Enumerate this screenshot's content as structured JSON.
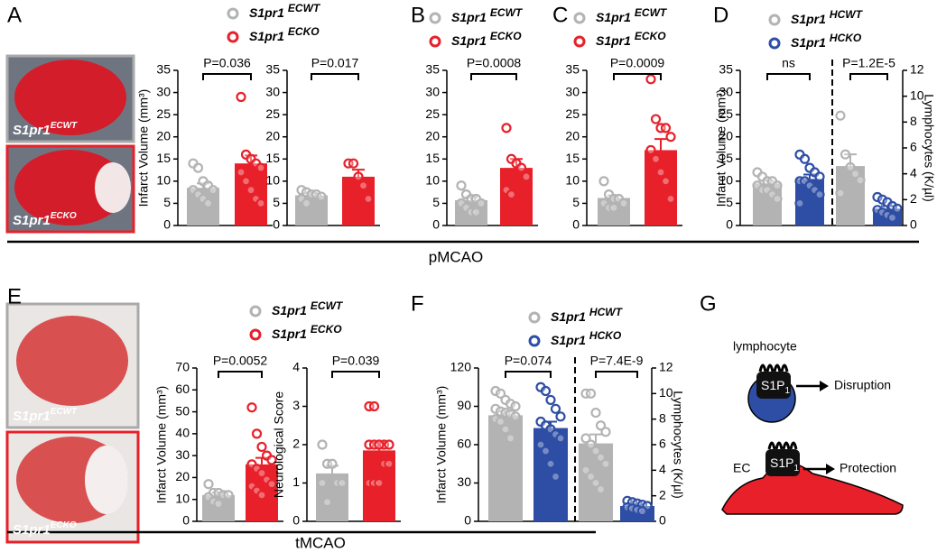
{
  "panels": [
    {
      "label": "A",
      "legend": [
        {
          "name": "S1pr1",
          "sup": "ECWT"
        },
        {
          "name": "S1pr1",
          "sup": "ECKO"
        }
      ],
      "images": [
        {
          "name": "S1pr1",
          "sup": "ECWT"
        },
        {
          "name": "S1pr1",
          "sup": "ECKO"
        }
      ]
    },
    {
      "label": "B",
      "legend": [
        {
          "name": "S1pr1",
          "sup": "ECWT"
        },
        {
          "name": "S1pr1",
          "sup": "ECKO"
        }
      ]
    },
    {
      "label": "C",
      "legend": [
        {
          "name": "S1pr1",
          "sup": "ECWT"
        },
        {
          "name": "S1pr1",
          "sup": "ECKO"
        }
      ]
    },
    {
      "label": "D",
      "legend": [
        {
          "name": "S1pr1",
          "sup": "HCWT"
        },
        {
          "name": "S1pr1",
          "sup": "HCKO"
        }
      ]
    },
    {
      "label": "E",
      "legend": [
        {
          "name": "S1pr1",
          "sup": "ECWT"
        },
        {
          "name": "S1pr1",
          "sup": "ECKO"
        }
      ],
      "images": [
        {
          "name": "S1pr1",
          "sup": "ECWT"
        },
        {
          "name": "S1pr1",
          "sup": "ECKO"
        }
      ]
    },
    {
      "label": "F",
      "legend": [
        {
          "name": "S1pr1",
          "sup": "HCWT"
        },
        {
          "name": "S1pr1",
          "sup": "HCKO"
        }
      ]
    },
    {
      "label": "G",
      "texts": {
        "lymphocyte": "lymphocyte",
        "receptor": "S1P",
        "receptor_sub": "1",
        "disruption": "Disruption",
        "ec": "EC",
        "protection": "Protection"
      }
    }
  ],
  "sections": [
    "pMCAO",
    "tMCAO"
  ],
  "chart_data": [
    {
      "type": "bar",
      "ylabel": "Infarct Volume (mm³)",
      "ylim": [
        0,
        35
      ],
      "yticks": [
        0,
        5,
        10,
        15,
        20,
        25,
        30,
        35
      ],
      "brackets": [
        "P=0.036"
      ],
      "series": [
        {
          "color": "#b3b3b3",
          "values": [
            8.5
          ],
          "errors": [
            1
          ],
          "points": [
            14,
            13,
            10,
            9,
            8,
            8,
            7,
            6,
            5
          ]
        },
        {
          "color": "#e8202a",
          "values": [
            14
          ],
          "errors": [
            1.8
          ],
          "points": [
            29,
            16,
            15,
            14,
            13,
            12,
            10,
            8,
            6,
            5
          ]
        }
      ]
    },
    {
      "type": "bar",
      "ylim": [
        0,
        35
      ],
      "yticks": [
        0,
        5,
        10,
        15,
        20,
        25,
        30,
        35
      ],
      "brackets": [
        "P=0.017"
      ],
      "series": [
        {
          "color": "#b3b3b3",
          "values": [
            6.8
          ],
          "errors": [
            0.5
          ],
          "points": [
            8,
            7.5,
            7,
            7,
            6.5,
            6,
            5
          ]
        },
        {
          "color": "#e8202a",
          "values": [
            11
          ],
          "errors": [
            1.6
          ],
          "points": [
            14,
            14,
            11,
            9,
            6
          ]
        }
      ]
    },
    {
      "type": "bar",
      "ylim": [
        0,
        35
      ],
      "yticks": [
        0,
        5,
        10,
        15,
        20,
        25,
        30,
        35
      ],
      "brackets": [
        "P=0.0008"
      ],
      "series": [
        {
          "color": "#b3b3b3",
          "values": [
            5.7
          ],
          "errors": [
            0.7
          ],
          "points": [
            9,
            7,
            6,
            6,
            5,
            5,
            4,
            3,
            3
          ]
        },
        {
          "color": "#e8202a",
          "values": [
            13
          ],
          "errors": [
            2
          ],
          "points": [
            22,
            15,
            14,
            13,
            11,
            8,
            7
          ]
        }
      ]
    },
    {
      "type": "bar",
      "ylim": [
        0,
        35
      ],
      "yticks": [
        0,
        5,
        10,
        15,
        20,
        25,
        30,
        35
      ],
      "brackets": [
        "P=0.0009"
      ],
      "series": [
        {
          "color": "#b3b3b3",
          "values": [
            6.2
          ],
          "errors": [
            0.6
          ],
          "points": [
            10,
            7,
            6,
            6,
            5,
            5,
            4,
            4
          ]
        },
        {
          "color": "#e8202a",
          "values": [
            17
          ],
          "errors": [
            2.5
          ],
          "points": [
            33,
            24,
            22,
            22,
            20,
            17,
            15,
            12,
            10,
            6
          ]
        }
      ]
    },
    {
      "type": "bar",
      "ylabel": "Infarct Volume  (mm³)",
      "ylim": [
        0,
        35
      ],
      "yticks": [
        0,
        5,
        10,
        15,
        20,
        25,
        30,
        35
      ],
      "y2label": "Lymphocytes (K/µl)",
      "y2lim": [
        0,
        12
      ],
      "y2ticks": [
        0,
        2,
        4,
        6,
        8,
        10,
        12
      ],
      "brackets": [
        "ns",
        "P=1.2E-5"
      ],
      "series": [
        {
          "color": "#b3b3b3",
          "values": [
            9.5
          ],
          "errors": [
            0.6
          ],
          "points": [
            12,
            11,
            10,
            10,
            9,
            9,
            8,
            8,
            7,
            6
          ]
        },
        {
          "color": "#2e4ea5",
          "values": [
            10.5
          ],
          "errors": [
            1
          ],
          "points": [
            16,
            15,
            13,
            12,
            11,
            10,
            10,
            9,
            8,
            7,
            5
          ]
        },
        {
          "color": "#b3b3b3",
          "axis": "y2",
          "values": [
            4.6
          ],
          "errors": [
            0.9
          ],
          "points": [
            8.5,
            5.5,
            4.5,
            4,
            3.5,
            2.5
          ]
        },
        {
          "color": "#2e4ea5",
          "axis": "y2",
          "values": [
            1.3
          ],
          "errors": [
            0.2
          ],
          "points": [
            2.2,
            2,
            1.8,
            1.5,
            1.3,
            1.2,
            1,
            0.8,
            0.6
          ]
        }
      ]
    },
    {
      "type": "bar",
      "ylabel": "Infarct Volume (mm³)",
      "ylim": [
        0,
        70
      ],
      "yticks": [
        0,
        10,
        20,
        30,
        40,
        50,
        60,
        70
      ],
      "brackets": [
        "P=0.0052"
      ],
      "series": [
        {
          "color": "#b3b3b3",
          "values": [
            12
          ],
          "errors": [
            1.2
          ],
          "points": [
            17,
            13,
            13,
            12,
            12,
            11,
            9,
            8
          ]
        },
        {
          "color": "#e8202a",
          "values": [
            26
          ],
          "errors": [
            3
          ],
          "points": [
            52,
            40,
            34,
            30,
            28,
            26,
            24,
            22,
            19,
            17,
            16,
            14,
            12
          ]
        }
      ]
    },
    {
      "type": "bar",
      "ylabel": "Neurological Score",
      "ylim": [
        0,
        4
      ],
      "yticks": [
        0,
        1,
        2,
        3,
        4
      ],
      "brackets": [
        "P=0.039"
      ],
      "series": [
        {
          "color": "#b3b3b3",
          "values": [
            1.25
          ],
          "errors": [
            0.2
          ],
          "points": [
            2,
            1.5,
            1.5,
            1,
            1,
            1,
            0.5
          ]
        },
        {
          "color": "#e8202a",
          "values": [
            1.85
          ],
          "errors": [
            0.2
          ],
          "points": [
            3,
            3,
            2,
            2,
            2,
            2,
            2,
            2,
            1.5,
            1.5,
            1,
            1,
            1
          ]
        }
      ]
    },
    {
      "type": "bar",
      "ylabel": "Infarct Volume (mm³)",
      "ylim": [
        0,
        120
      ],
      "yticks": [
        0,
        30,
        60,
        90,
        120
      ],
      "y2label": "Lymphocytes (K/µl)",
      "y2lim": [
        0,
        12
      ],
      "y2ticks": [
        0,
        2,
        4,
        6,
        8,
        10,
        12
      ],
      "brackets": [
        "P=0.074",
        "P=7.4E-9"
      ],
      "series": [
        {
          "color": "#b3b3b3",
          "values": [
            83
          ],
          "errors": [
            3
          ],
          "points": [
            102,
            100,
            95,
            92,
            90,
            88,
            86,
            85,
            84,
            82,
            80,
            78,
            72,
            65
          ]
        },
        {
          "color": "#2e4ea5",
          "values": [
            73
          ],
          "errors": [
            5
          ],
          "points": [
            105,
            102,
            95,
            88,
            82,
            78,
            75,
            72,
            68,
            65,
            60,
            55,
            45,
            35
          ]
        },
        {
          "color": "#b3b3b3",
          "axis": "y2",
          "values": [
            6.1
          ],
          "errors": [
            0.7
          ],
          "points": [
            10,
            10,
            8.5,
            7.5,
            7,
            6.5,
            6,
            5.5,
            5,
            4.5,
            4,
            3.5,
            3,
            2.5
          ]
        },
        {
          "color": "#2e4ea5",
          "axis": "y2",
          "values": [
            1.2
          ],
          "errors": [
            0.1
          ],
          "points": [
            1.6,
            1.5,
            1.4,
            1.3,
            1.2,
            1.1,
            1,
            0.9,
            0.8
          ]
        }
      ]
    }
  ]
}
